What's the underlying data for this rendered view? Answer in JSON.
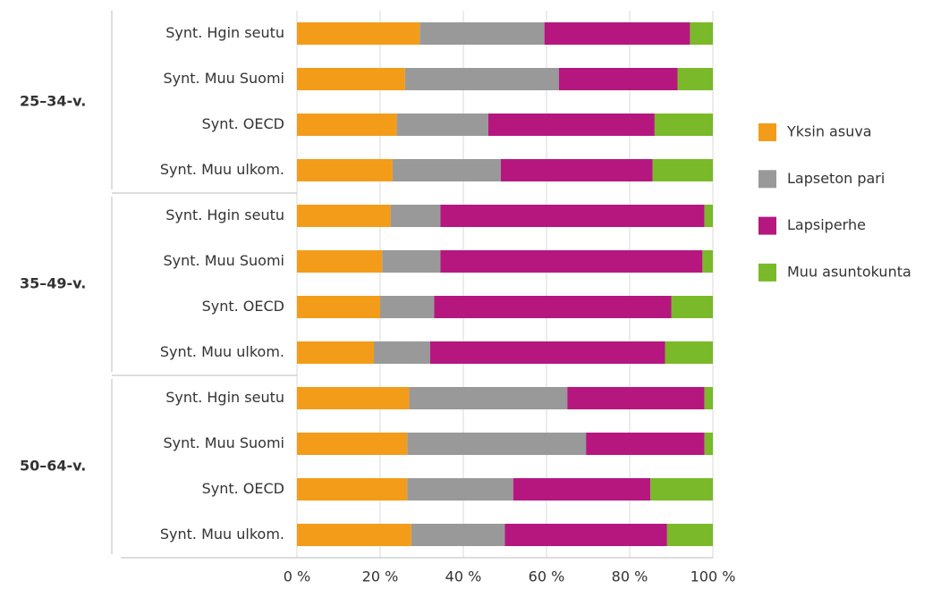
{
  "chart_data": {
    "type": "stacked-bar-horizontal",
    "groups": [
      "25–34-v.",
      "35–49-v.",
      "50–64-v."
    ],
    "categories": [
      "Synt. Hgin seutu",
      "Synt. Muu Suomi",
      "Synt. OECD",
      "Synt. Muu ulkom.",
      "Synt. Hgin seutu",
      "Synt. Muu Suomi",
      "Synt. OECD",
      "Synt. Muu ulkom.",
      "Synt. Hgin seutu",
      "Synt. Muu Suomi",
      "Synt. OECD",
      "Synt. Muu ulkom."
    ],
    "series": [
      {
        "name": "Yksin asuva",
        "color": "#f39c1a",
        "values": [
          29.5,
          26,
          24,
          23,
          22.5,
          20.5,
          20,
          18.5,
          27,
          26.5,
          26.5,
          27.5
        ]
      },
      {
        "name": "Lapseton pari",
        "color": "#999999",
        "values": [
          30,
          37,
          22,
          26,
          12,
          14,
          13,
          13.5,
          38,
          43,
          25.5,
          22.5
        ]
      },
      {
        "name": "Lapsiperhe",
        "color": "#b5177f",
        "values": [
          35,
          28.5,
          40,
          36.5,
          63.5,
          63,
          57,
          56.5,
          33,
          28.5,
          33,
          39
        ]
      },
      {
        "name": "Muu asuntokunta",
        "color": "#7ab929",
        "values": [
          5.5,
          8.5,
          14,
          14.5,
          2,
          2.5,
          10,
          11.5,
          2,
          2,
          15,
          11
        ]
      }
    ],
    "xlim": [
      0,
      100
    ],
    "xticks": [
      {
        "value": 0,
        "label": "0 %"
      },
      {
        "value": 20,
        "label": "20 %"
      },
      {
        "value": 40,
        "label": "40 %"
      },
      {
        "value": 60,
        "label": "60 %"
      },
      {
        "value": 80,
        "label": "80 %"
      },
      {
        "value": 100,
        "label": "100 %"
      }
    ],
    "grid": true,
    "legend": "right"
  }
}
